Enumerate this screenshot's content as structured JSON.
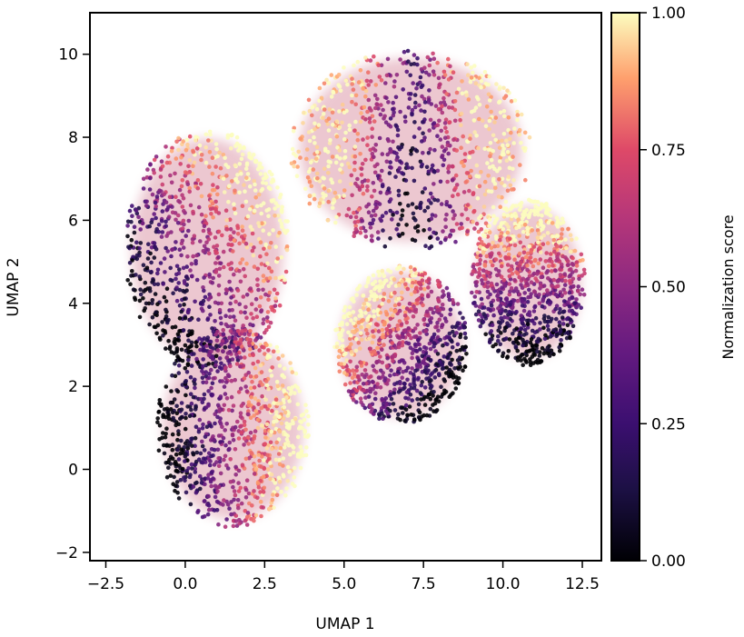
{
  "chart_data": {
    "type": "scatter",
    "title": "",
    "xlabel": "UMAP 1",
    "ylabel": "UMAP 2",
    "xlim": [
      -3.0,
      13.1
    ],
    "ylim": [
      -2.2,
      11.0
    ],
    "xticks": [
      -2.5,
      0.0,
      2.5,
      5.0,
      7.5,
      10.0,
      12.5
    ],
    "xtick_labels": [
      "−2.5",
      "0.0",
      "2.5",
      "5.0",
      "7.5",
      "10.0",
      "12.5"
    ],
    "yticks": [
      -2,
      0,
      2,
      4,
      6,
      8,
      10
    ],
    "ytick_labels": [
      "−2",
      "0",
      "2",
      "4",
      "6",
      "8",
      "10"
    ],
    "colorbar": {
      "label": "Normalization score",
      "range": [
        0.0,
        1.0
      ],
      "ticks": [
        0.0,
        0.25,
        0.5,
        0.75,
        1.0
      ],
      "tick_labels": [
        "0.00",
        "0.25",
        "0.50",
        "0.75",
        "1.00"
      ],
      "colormap": "magma",
      "colors": [
        "#000004",
        "#3b0f70",
        "#8c2981",
        "#de4968",
        "#fe9f6d",
        "#fcfdbf"
      ]
    },
    "grid": false,
    "clusters": [
      {
        "center": [
          0.7,
          5.3
        ],
        "radius": [
          2.6,
          2.9
        ],
        "low_score_side": "lower-left"
      },
      {
        "center": [
          1.5,
          1.0
        ],
        "radius": [
          2.4,
          2.4
        ],
        "low_score_side": "left"
      },
      {
        "center": [
          7.1,
          7.7
        ],
        "radius": [
          3.8,
          2.4
        ],
        "low_score_side": "center"
      },
      {
        "center": [
          6.8,
          3.0
        ],
        "radius": [
          2.1,
          1.9
        ],
        "low_score_side": "lower-right"
      },
      {
        "center": [
          10.8,
          4.5
        ],
        "radius": [
          1.8,
          2.0
        ],
        "low_score_side": "bottom"
      }
    ]
  }
}
